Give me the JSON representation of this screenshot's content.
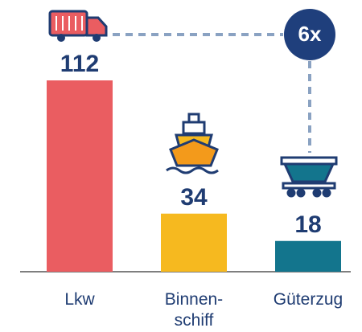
{
  "chart_data": {
    "type": "bar",
    "categories": [
      "Lkw",
      "Binnen-\nschiff",
      "Güterzug"
    ],
    "values": [
      112,
      34,
      18
    ],
    "colors": [
      "#ea5d61",
      "#f6b91f",
      "#13758d"
    ],
    "annotation": "6x"
  }
}
